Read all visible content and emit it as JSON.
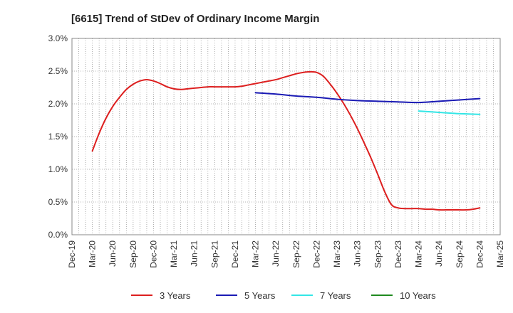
{
  "chart_data": {
    "type": "line",
    "title": "[6615]  Trend of StDev of Ordinary Income Margin",
    "xlabel": "",
    "ylabel": "",
    "x_ticks": [
      "Dec-19",
      "Mar-20",
      "Jun-20",
      "Sep-20",
      "Dec-20",
      "Mar-21",
      "Jun-21",
      "Sep-21",
      "Dec-21",
      "Mar-22",
      "Jun-22",
      "Sep-22",
      "Dec-22",
      "Mar-23",
      "Jun-23",
      "Sep-23",
      "Dec-23",
      "Mar-24",
      "Jun-24",
      "Sep-24",
      "Dec-24",
      "Mar-25"
    ],
    "y_ticks": [
      "0.0%",
      "0.5%",
      "1.0%",
      "1.5%",
      "2.0%",
      "2.5%",
      "3.0%"
    ],
    "ylim": [
      0,
      3.0
    ],
    "grid": true,
    "legend_position": "bottom",
    "series": [
      {
        "name": "3 Years",
        "color": "#dd1f1f",
        "points": [
          [
            "Mar-20",
            1.28
          ],
          [
            "Apr-20",
            1.55
          ],
          [
            "May-20",
            1.78
          ],
          [
            "Jun-20",
            1.96
          ],
          [
            "Jul-20",
            2.1
          ],
          [
            "Aug-20",
            2.22
          ],
          [
            "Sep-20",
            2.3
          ],
          [
            "Oct-20",
            2.35
          ],
          [
            "Nov-20",
            2.37
          ],
          [
            "Dec-20",
            2.35
          ],
          [
            "Jan-21",
            2.31
          ],
          [
            "Feb-21",
            2.26
          ],
          [
            "Mar-21",
            2.23
          ],
          [
            "Apr-21",
            2.22
          ],
          [
            "May-21",
            2.23
          ],
          [
            "Jun-21",
            2.24
          ],
          [
            "Jul-21",
            2.25
          ],
          [
            "Aug-21",
            2.26
          ],
          [
            "Sep-21",
            2.26
          ],
          [
            "Oct-21",
            2.26
          ],
          [
            "Nov-21",
            2.26
          ],
          [
            "Dec-21",
            2.26
          ],
          [
            "Jan-22",
            2.27
          ],
          [
            "Feb-22",
            2.29
          ],
          [
            "Mar-22",
            2.31
          ],
          [
            "Apr-22",
            2.33
          ],
          [
            "May-22",
            2.35
          ],
          [
            "Jun-22",
            2.37
          ],
          [
            "Jul-22",
            2.4
          ],
          [
            "Aug-22",
            2.43
          ],
          [
            "Sep-22",
            2.46
          ],
          [
            "Oct-22",
            2.48
          ],
          [
            "Nov-22",
            2.49
          ],
          [
            "Dec-22",
            2.48
          ],
          [
            "Jan-23",
            2.42
          ],
          [
            "Feb-23",
            2.3
          ],
          [
            "Mar-23",
            2.16
          ],
          [
            "Apr-23",
            2.0
          ],
          [
            "May-23",
            1.82
          ],
          [
            "Jun-23",
            1.62
          ],
          [
            "Jul-23",
            1.4
          ],
          [
            "Aug-23",
            1.17
          ],
          [
            "Sep-23",
            0.92
          ],
          [
            "Oct-23",
            0.66
          ],
          [
            "Nov-23",
            0.46
          ],
          [
            "Dec-23",
            0.41
          ],
          [
            "Jan-24",
            0.4
          ],
          [
            "Feb-24",
            0.4
          ],
          [
            "Mar-24",
            0.4
          ],
          [
            "Apr-24",
            0.39
          ],
          [
            "May-24",
            0.39
          ],
          [
            "Jun-24",
            0.38
          ],
          [
            "Jul-24",
            0.38
          ],
          [
            "Aug-24",
            0.38
          ],
          [
            "Sep-24",
            0.38
          ],
          [
            "Oct-24",
            0.38
          ],
          [
            "Nov-24",
            0.39
          ],
          [
            "Dec-24",
            0.41
          ]
        ]
      },
      {
        "name": "5 Years",
        "color": "#1a1ab4",
        "points": [
          [
            "Mar-22",
            2.17
          ],
          [
            "Jun-22",
            2.15
          ],
          [
            "Sep-22",
            2.12
          ],
          [
            "Dec-22",
            2.1
          ],
          [
            "Mar-23",
            2.07
          ],
          [
            "Jun-23",
            2.05
          ],
          [
            "Sep-23",
            2.04
          ],
          [
            "Dec-23",
            2.03
          ],
          [
            "Mar-24",
            2.02
          ],
          [
            "Jun-24",
            2.04
          ],
          [
            "Sep-24",
            2.06
          ],
          [
            "Dec-24",
            2.08
          ]
        ]
      },
      {
        "name": "7 Years",
        "color": "#33e6e6",
        "points": [
          [
            "Mar-24",
            1.89
          ],
          [
            "Jun-24",
            1.87
          ],
          [
            "Sep-24",
            1.85
          ],
          [
            "Dec-24",
            1.84
          ]
        ]
      },
      {
        "name": "10 Years",
        "color": "#1f8a1f",
        "points": []
      }
    ]
  }
}
